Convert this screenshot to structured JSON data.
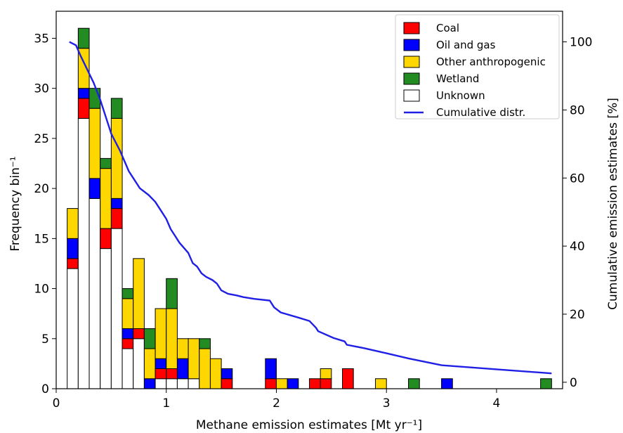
{
  "chart_data": {
    "type": "bar",
    "subtype": "stacked histogram with cumulative line",
    "title": "",
    "xlabel": "Methane emission estimates [Mt yr⁻¹]",
    "ylabel": "Frequency bin⁻¹",
    "ylabel_right": "Cumulative emission estimates [%]",
    "xlim": [
      0,
      4.6
    ],
    "ylim": [
      0,
      37.7
    ],
    "ylim_right": [
      -1.9,
      109
    ],
    "x_ticks": [
      "0",
      "1",
      "2",
      "3",
      "4"
    ],
    "y_ticks": [
      "0",
      "5",
      "10",
      "15",
      "20",
      "25",
      "30",
      "35"
    ],
    "y_ticks_right": [
      "0",
      "20",
      "40",
      "60",
      "80",
      "100"
    ],
    "bin_width": 0.1,
    "bin_left_edges": [
      0.1,
      0.2,
      0.3,
      0.4,
      0.5,
      0.6,
      0.7,
      0.8,
      0.9,
      1.0,
      1.1,
      1.2,
      1.3,
      1.4,
      1.5,
      1.9,
      2.0,
      2.1,
      2.3,
      2.4,
      2.6,
      2.9,
      3.2,
      3.5,
      4.4
    ],
    "series": [
      {
        "name": "Unknown",
        "color": "#ffffff",
        "values": [
          12,
          27,
          19,
          14,
          16,
          4,
          5,
          0,
          1,
          1,
          1,
          1,
          0,
          0,
          0,
          0,
          0,
          0,
          0,
          0,
          0,
          0,
          0,
          0,
          0
        ]
      },
      {
        "name": "Coal",
        "color": "#ff0000",
        "values": [
          1,
          2,
          0,
          2,
          2,
          1,
          1,
          0,
          1,
          1,
          0,
          0,
          0,
          0,
          1,
          1,
          0,
          0,
          1,
          1,
          2,
          0,
          0,
          0,
          0
        ]
      },
      {
        "name": "Oil and gas",
        "color": "#0000ff",
        "values": [
          2,
          1,
          2,
          0,
          1,
          1,
          0,
          1,
          1,
          0,
          2,
          0,
          0,
          0,
          1,
          2,
          0,
          1,
          0,
          0,
          0,
          0,
          0,
          1,
          0
        ]
      },
      {
        "name": "Other anthropogenic",
        "color": "#ffd700",
        "values": [
          3,
          4,
          7,
          6,
          8,
          3,
          7,
          3,
          5,
          6,
          2,
          4,
          4,
          3,
          0,
          0,
          1,
          0,
          0,
          1,
          0,
          1,
          0,
          0,
          0
        ]
      },
      {
        "name": "Wetland",
        "color": "#228b22",
        "values": [
          0,
          2,
          2,
          1,
          2,
          1,
          0,
          2,
          0,
          3,
          0,
          0,
          1,
          0,
          0,
          0,
          0,
          0,
          0,
          0,
          0,
          0,
          1,
          0,
          1
        ]
      }
    ],
    "cumulative_line": {
      "name": "Cumulative distr.",
      "color": "#1f1fe6",
      "x": [
        0.12,
        0.18,
        0.22,
        0.28,
        0.34,
        0.4,
        0.5,
        0.58,
        0.62,
        0.66,
        0.7,
        0.76,
        0.84,
        0.9,
        0.96,
        1.0,
        1.04,
        1.08,
        1.12,
        1.2,
        1.24,
        1.28,
        1.32,
        1.36,
        1.42,
        1.46,
        1.5,
        1.56,
        1.64,
        1.7,
        1.8,
        1.94,
        1.98,
        2.04,
        2.2,
        2.3,
        2.36,
        2.38,
        2.52,
        2.62,
        2.64,
        2.8,
        3.0,
        3.2,
        3.5,
        4.0,
        4.5
      ],
      "y": [
        100,
        99,
        96,
        92,
        88,
        83,
        73,
        68,
        65,
        62,
        60,
        57,
        55,
        53,
        50,
        48,
        45,
        43,
        41,
        38,
        35,
        34,
        32,
        31,
        30,
        29,
        27,
        26,
        25.5,
        25,
        24.5,
        24,
        22,
        20.5,
        19,
        18,
        16,
        15,
        13,
        12,
        11,
        10,
        8.5,
        7,
        5,
        3.8,
        2.6
      ]
    },
    "legend": {
      "position": "top-right",
      "entries": [
        "Coal",
        "Oil and gas",
        "Other anthropogenic",
        "Wetland",
        "Unknown",
        "Cumulative distr."
      ]
    }
  }
}
